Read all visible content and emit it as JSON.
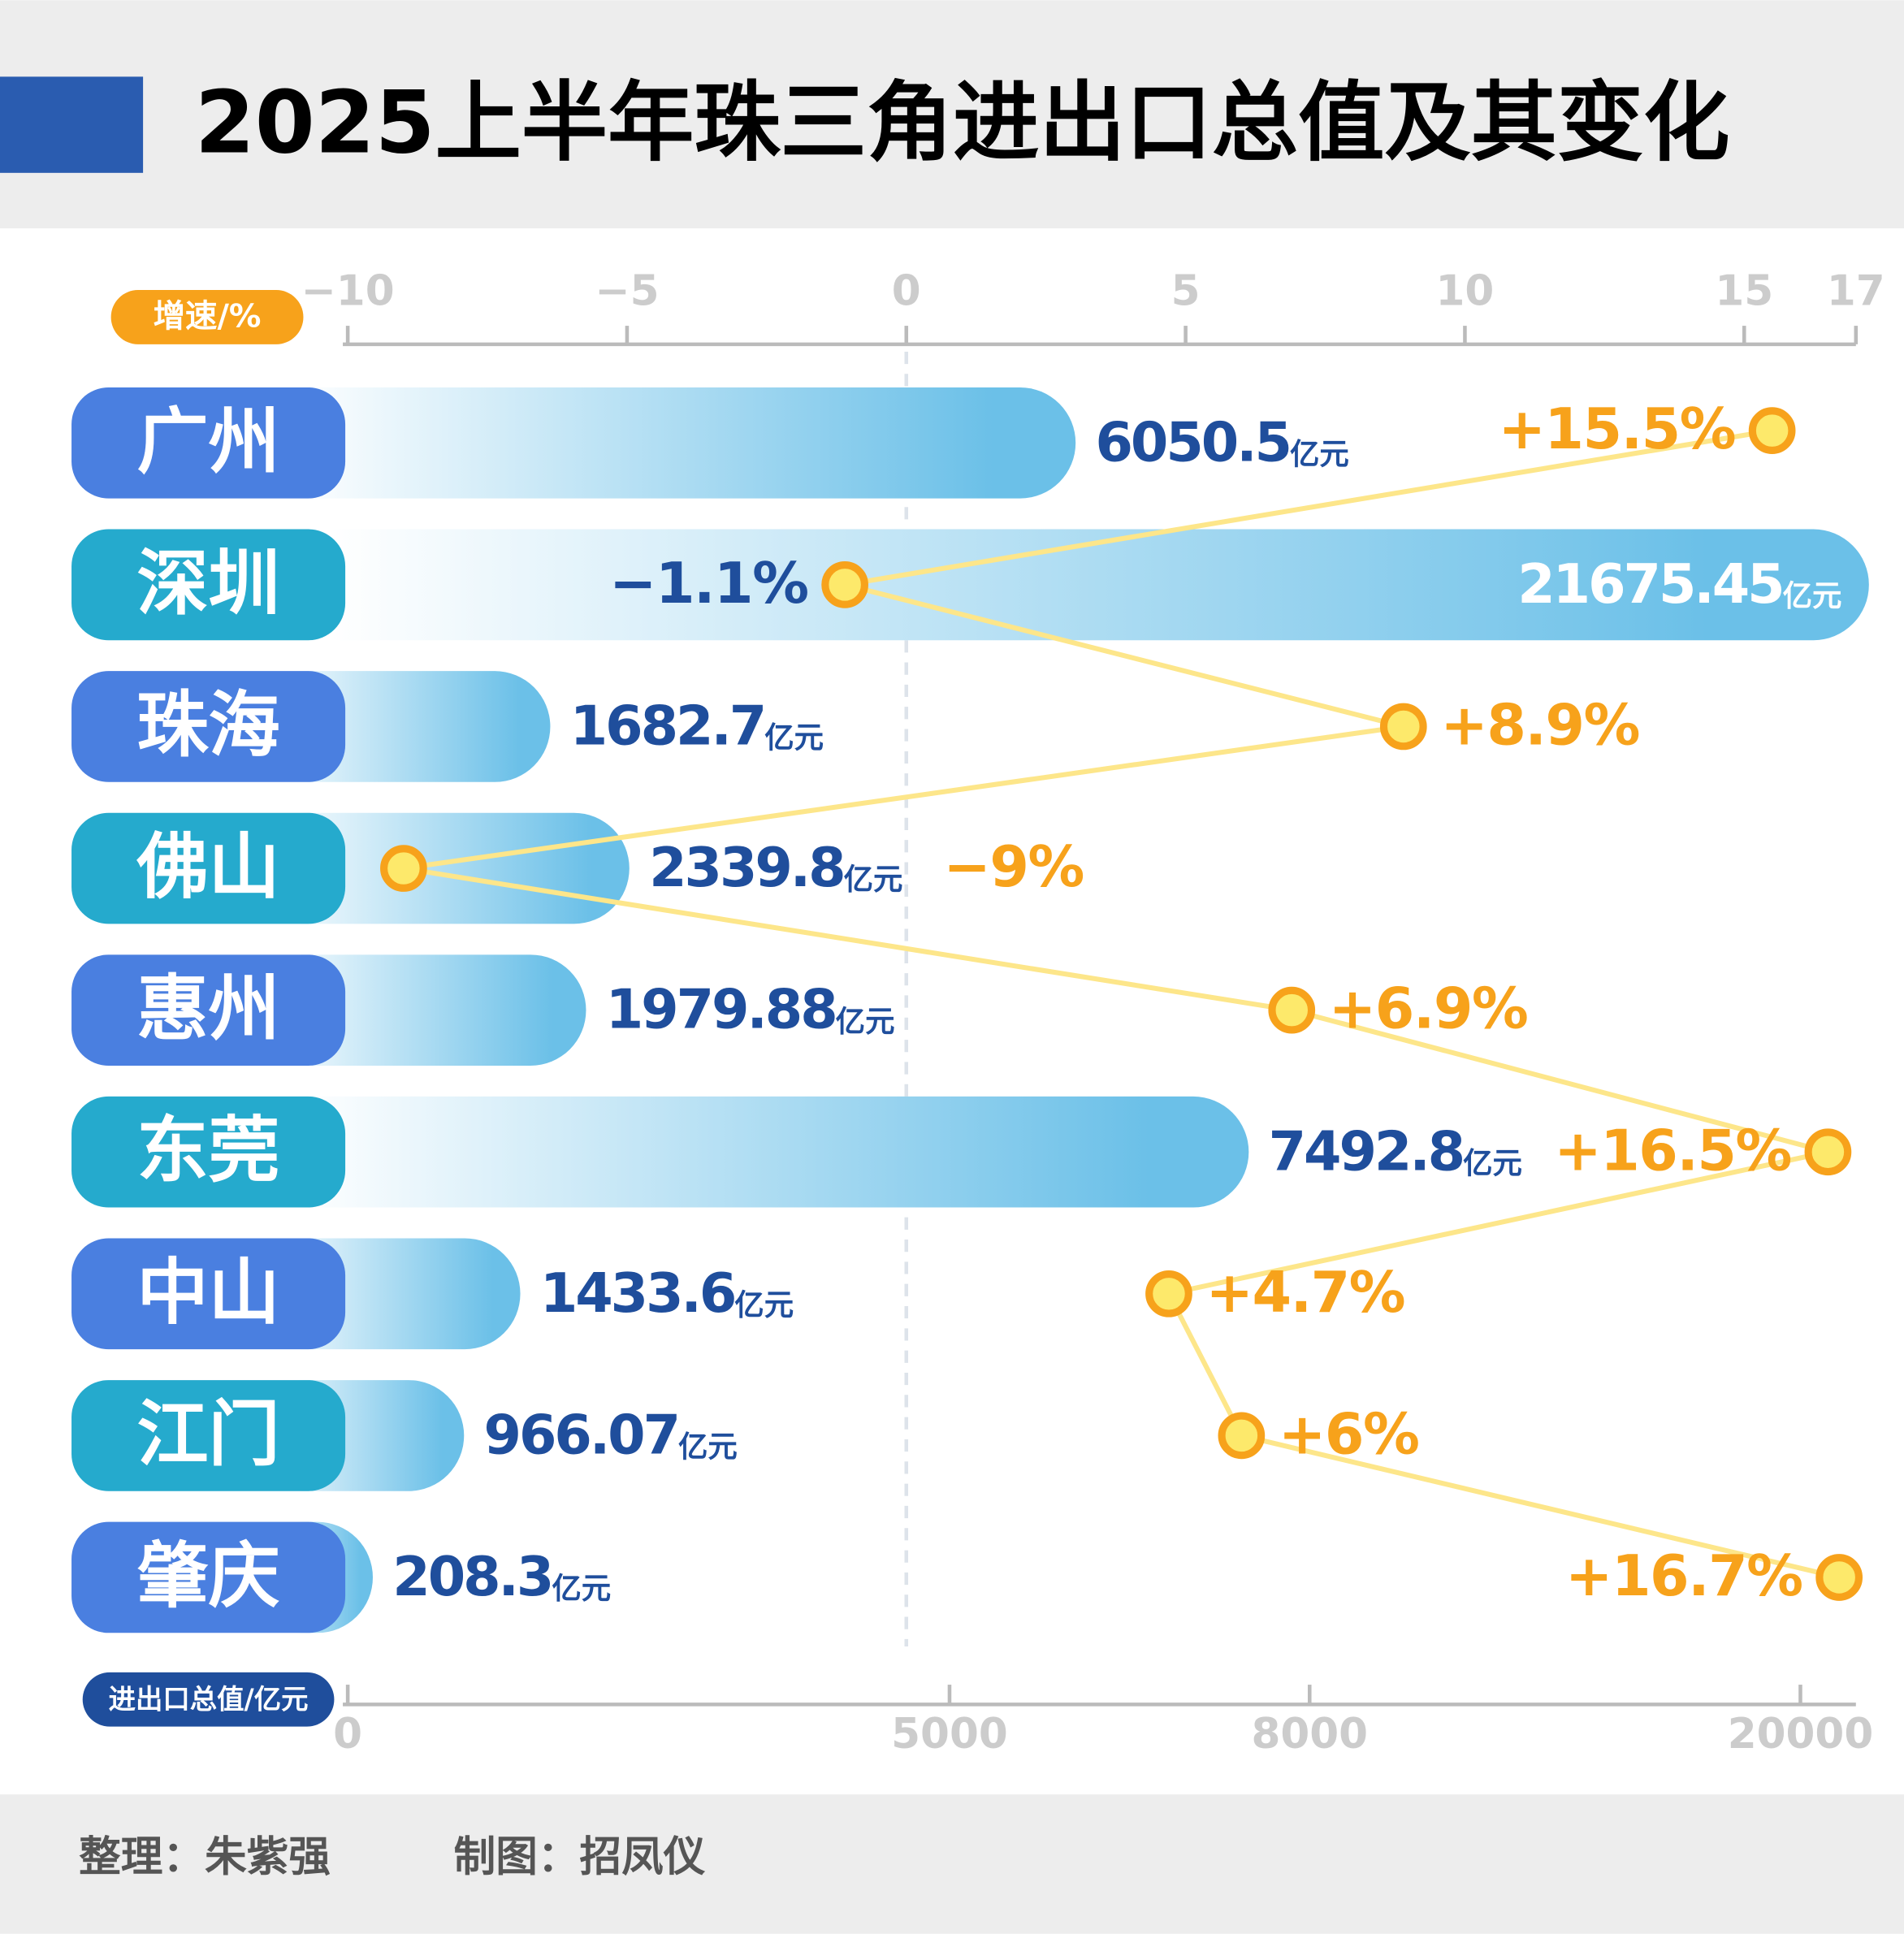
{
  "chart_data": {
    "type": "bar",
    "title": "2025上半年珠三角进出口总值及其变化",
    "categories": [
      "广州",
      "深圳",
      "珠海",
      "佛山",
      "惠州",
      "东莞",
      "中山",
      "江门",
      "肇庆"
    ],
    "value_unit": "亿元",
    "series": [
      {
        "name": "进出口总值/亿元",
        "color": "#6bc0e8",
        "values": [
          6050.5,
          21675.45,
          1682.7,
          2339.8,
          1979.88,
          7492.8,
          1433.6,
          966.07,
          208.3
        ]
      },
      {
        "name": "增速/%",
        "color": "#f7a21b",
        "axis": "x2",
        "values": [
          15.5,
          -1.1,
          8.9,
          -9,
          6.9,
          16.5,
          4.7,
          6,
          16.7
        ],
        "value_labels": [
          "+15.5%",
          "−1.1%",
          "+8.9%",
          "−9%",
          "+6.9%",
          "+16.5%",
          "+4.7%",
          "+6%",
          "+16.7%"
        ]
      }
    ],
    "xlim": [
      0,
      21400
    ],
    "xticks": [
      0,
      5000,
      8000,
      20000
    ],
    "x2lim": [
      -10,
      17
    ],
    "x2ticks": [
      {
        "value": -10,
        "label": "−10"
      },
      {
        "value": -5,
        "label": "−5"
      },
      0,
      5,
      10,
      15,
      17
    ]
  },
  "credits": [
    "整理：朱紫强",
    "制图：招凤仪"
  ]
}
